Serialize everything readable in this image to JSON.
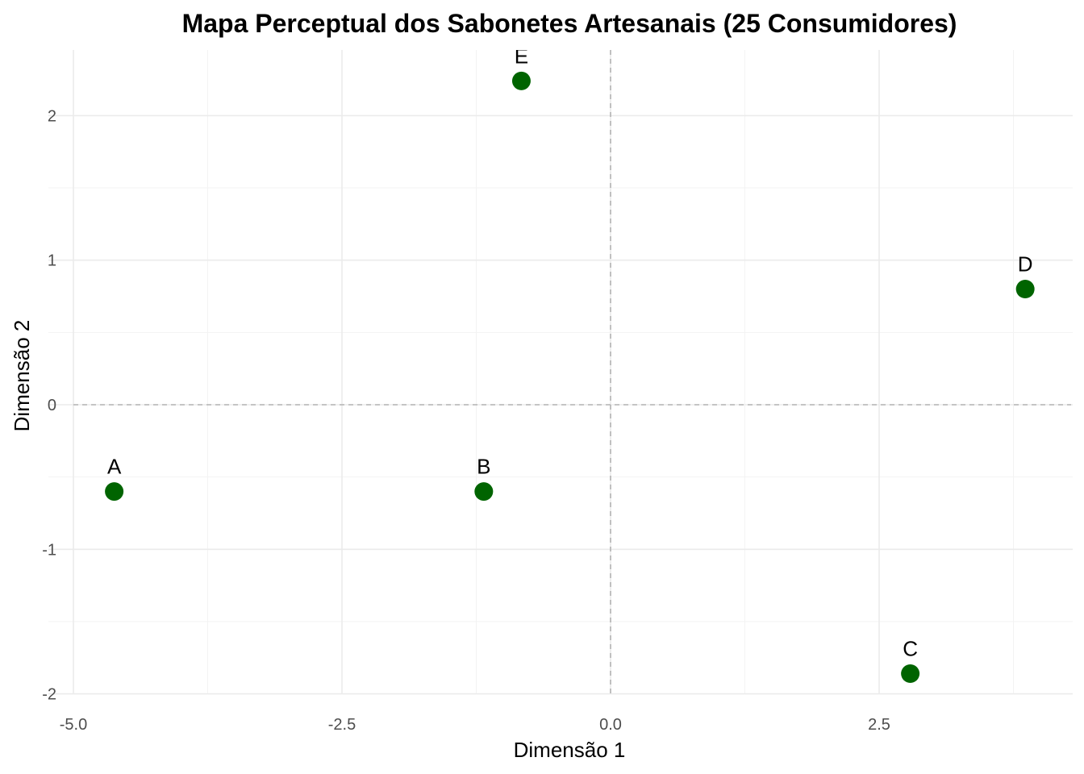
{
  "chart_data": {
    "type": "scatter",
    "title": "Mapa Perceptual dos Sabonetes Artesanais (25 Consumidores)",
    "xlabel": "Dimensão 1",
    "ylabel": "Dimensão 2",
    "xlim": [
      -5.0,
      4.3
    ],
    "ylim": [
      -2.0,
      2.45
    ],
    "x_ticks": [
      -5.0,
      -2.5,
      0.0,
      2.5
    ],
    "x_tick_labels": [
      "-5.0",
      "-2.5",
      "0.0",
      "2.5"
    ],
    "y_ticks": [
      -2,
      -1,
      0,
      1,
      2
    ],
    "y_tick_labels": [
      "-2",
      "-1",
      "0",
      "1",
      "2"
    ],
    "grid": true,
    "reference_lines": {
      "x": 0,
      "y": 0,
      "style": "dashed"
    },
    "point_color": "#006400",
    "points": [
      {
        "label": "A",
        "x": -4.62,
        "y": -0.6
      },
      {
        "label": "B",
        "x": -1.18,
        "y": -0.6
      },
      {
        "label": "C",
        "x": 2.79,
        "y": -1.86
      },
      {
        "label": "D",
        "x": 3.86,
        "y": 0.8
      },
      {
        "label": "E",
        "x": -0.83,
        "y": 2.24
      }
    ]
  }
}
